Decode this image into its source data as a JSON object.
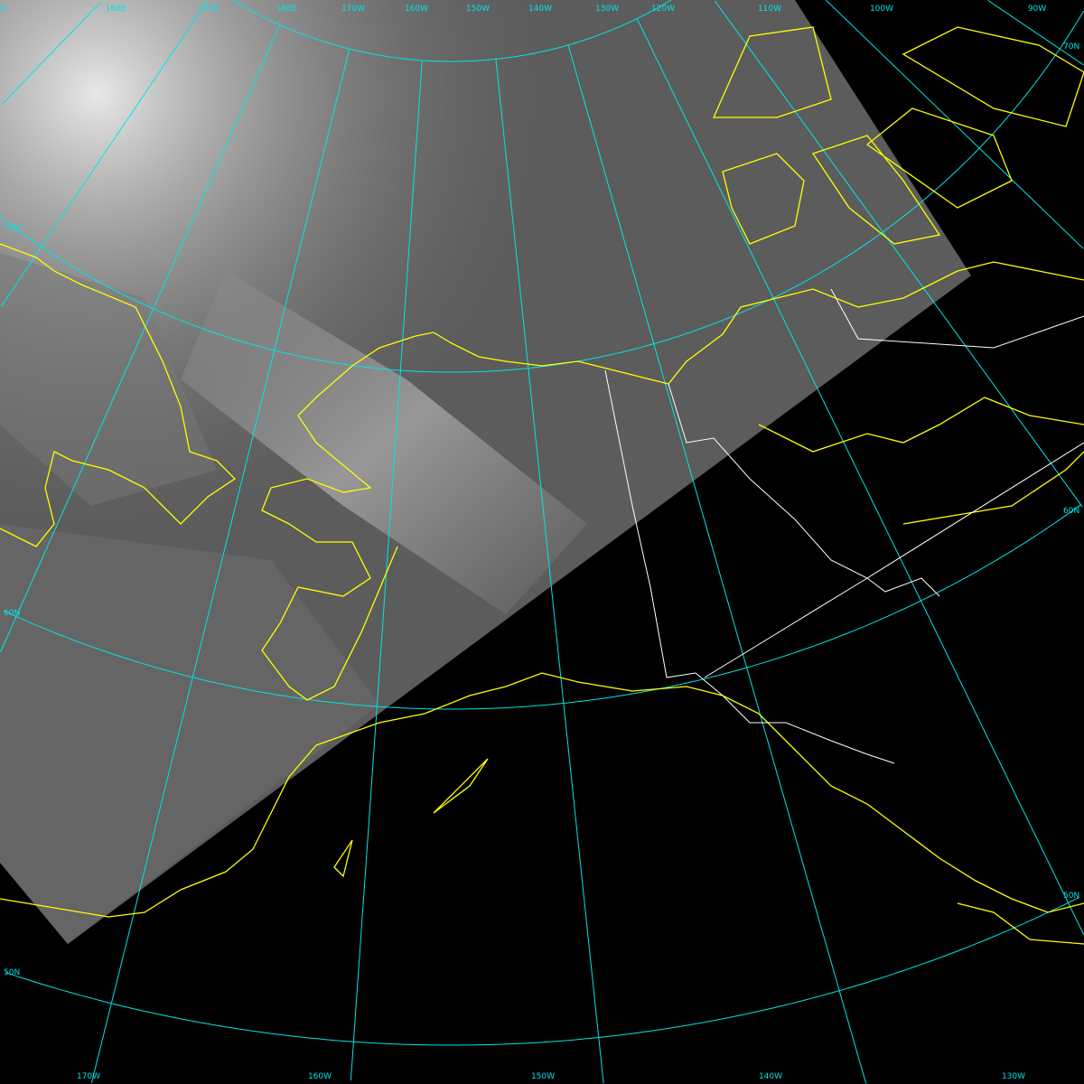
{
  "colors": {
    "graticule": "#00e5e5",
    "coastline": "#ffff00",
    "border": "#ffffff",
    "background": "#000000",
    "swath": "#5a5a5a"
  },
  "top_longitude_labels": [
    "E",
    "160E",
    "170E",
    "180E",
    "170W",
    "160W",
    "150W",
    "140W",
    "130W",
    "120W",
    "110W",
    "100W",
    "90W"
  ],
  "bottom_longitude_labels": [
    "170W",
    "160W",
    "150W",
    "140W",
    "130W"
  ],
  "left_latitude_labels": [
    "70N",
    "60N",
    "50N"
  ],
  "right_latitude_labels": [
    "70N",
    "60N",
    "50N"
  ]
}
